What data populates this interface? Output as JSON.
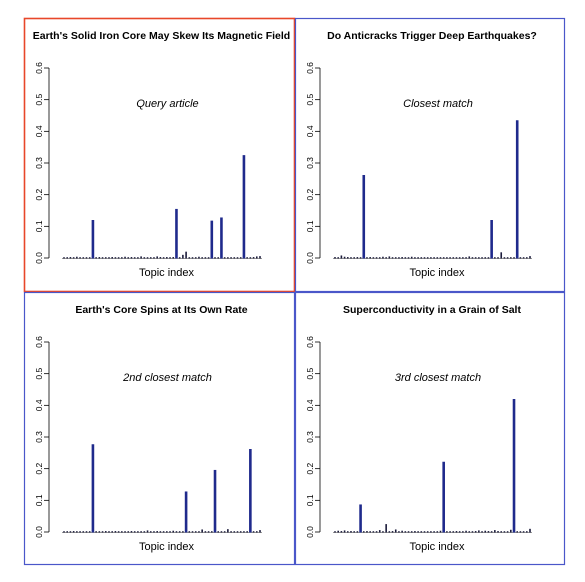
{
  "chart_data": [
    {
      "type": "bar",
      "title": "Earth's Solid Iron Core May Skew Its Magnetic Field",
      "annotation": "Query article",
      "xlabel": "Topic index",
      "ylabel": "",
      "ylim": [
        0,
        0.6
      ],
      "yticks": [
        "0.0",
        "0.1",
        "0.2",
        "0.3",
        "0.4",
        "0.5",
        "0.6"
      ],
      "frame_color": "#e8472a",
      "values": [
        0.002,
        0.002,
        0.003,
        0.002,
        0.004,
        0.002,
        0.001,
        0.002,
        0.002,
        0.12,
        0.002,
        0.003,
        0.002,
        0.002,
        0.002,
        0.003,
        0.002,
        0.002,
        0.002,
        0.004,
        0.002,
        0.003,
        0.002,
        0.002,
        0.005,
        0.002,
        0.002,
        0.002,
        0.002,
        0.005,
        0.003,
        0.002,
        0.003,
        0.002,
        0.003,
        0.155,
        0.002,
        0.01,
        0.02,
        0.002,
        0.002,
        0.002,
        0.004,
        0.002,
        0.002,
        0.002,
        0.118,
        0.002,
        0.002,
        0.128,
        0.002,
        0.002,
        0.002,
        0.002,
        0.002,
        0.002,
        0.325,
        0.002,
        0.002,
        0.003,
        0.005,
        0.006
      ]
    },
    {
      "type": "bar",
      "title": "Do Anticracks Trigger Deep Earthquakes?",
      "annotation": "Closest match",
      "xlabel": "Topic index",
      "ylabel": "",
      "ylim": [
        0,
        0.6
      ],
      "yticks": [
        "0.0",
        "0.1",
        "0.2",
        "0.3",
        "0.4",
        "0.5",
        "0.6"
      ],
      "frame_color": "#4a57c9",
      "values": [
        0.003,
        0.002,
        0.008,
        0.004,
        0.003,
        0.002,
        0.002,
        0.003,
        0.002,
        0.262,
        0.002,
        0.003,
        0.002,
        0.002,
        0.002,
        0.004,
        0.002,
        0.005,
        0.002,
        0.002,
        0.002,
        0.003,
        0.002,
        0.002,
        0.004,
        0.002,
        0.002,
        0.002,
        0.002,
        0.002,
        0.002,
        0.002,
        0.002,
        0.002,
        0.002,
        0.002,
        0.002,
        0.002,
        0.002,
        0.002,
        0.002,
        0.002,
        0.005,
        0.002,
        0.002,
        0.002,
        0.002,
        0.002,
        0.002,
        0.12,
        0.002,
        0.002,
        0.018,
        0.002,
        0.002,
        0.002,
        0.002,
        0.435,
        0.002,
        0.002,
        0.002,
        0.006
      ]
    },
    {
      "type": "bar",
      "title": "Earth's Core Spins at Its Own Rate",
      "annotation": "2nd closest match",
      "xlabel": "Topic index",
      "ylabel": "",
      "ylim": [
        0,
        0.6
      ],
      "yticks": [
        "0.0",
        "0.1",
        "0.2",
        "0.3",
        "0.4",
        "0.5",
        "0.6"
      ],
      "frame_color": "#4a57c9",
      "values": [
        0.002,
        0.002,
        0.002,
        0.003,
        0.002,
        0.002,
        0.002,
        0.002,
        0.002,
        0.277,
        0.002,
        0.002,
        0.002,
        0.003,
        0.002,
        0.002,
        0.003,
        0.002,
        0.002,
        0.002,
        0.002,
        0.003,
        0.002,
        0.002,
        0.002,
        0.002,
        0.005,
        0.002,
        0.002,
        0.003,
        0.002,
        0.002,
        0.002,
        0.002,
        0.004,
        0.002,
        0.002,
        0.002,
        0.128,
        0.002,
        0.002,
        0.002,
        0.002,
        0.008,
        0.002,
        0.002,
        0.002,
        0.196,
        0.002,
        0.002,
        0.002,
        0.009,
        0.002,
        0.002,
        0.002,
        0.002,
        0.002,
        0.002,
        0.262,
        0.002,
        0.002,
        0.006
      ]
    },
    {
      "type": "bar",
      "title": "Superconductivity in a Grain of Salt",
      "annotation": "3rd closest match",
      "xlabel": "Topic index",
      "ylabel": "",
      "ylim": [
        0,
        0.6
      ],
      "yticks": [
        "0.0",
        "0.1",
        "0.2",
        "0.3",
        "0.4",
        "0.5",
        "0.6"
      ],
      "frame_color": "#4a57c9",
      "values": [
        0.002,
        0.004,
        0.003,
        0.005,
        0.002,
        0.003,
        0.002,
        0.002,
        0.087,
        0.002,
        0.003,
        0.002,
        0.002,
        0.002,
        0.006,
        0.002,
        0.025,
        0.002,
        0.003,
        0.008,
        0.002,
        0.004,
        0.002,
        0.002,
        0.002,
        0.003,
        0.002,
        0.002,
        0.002,
        0.002,
        0.002,
        0.002,
        0.002,
        0.004,
        0.222,
        0.002,
        0.002,
        0.002,
        0.003,
        0.002,
        0.002,
        0.004,
        0.002,
        0.002,
        0.003,
        0.005,
        0.002,
        0.004,
        0.003,
        0.002,
        0.006,
        0.003,
        0.002,
        0.002,
        0.002,
        0.007,
        0.42,
        0.002,
        0.002,
        0.002,
        0.002,
        0.01
      ]
    }
  ]
}
